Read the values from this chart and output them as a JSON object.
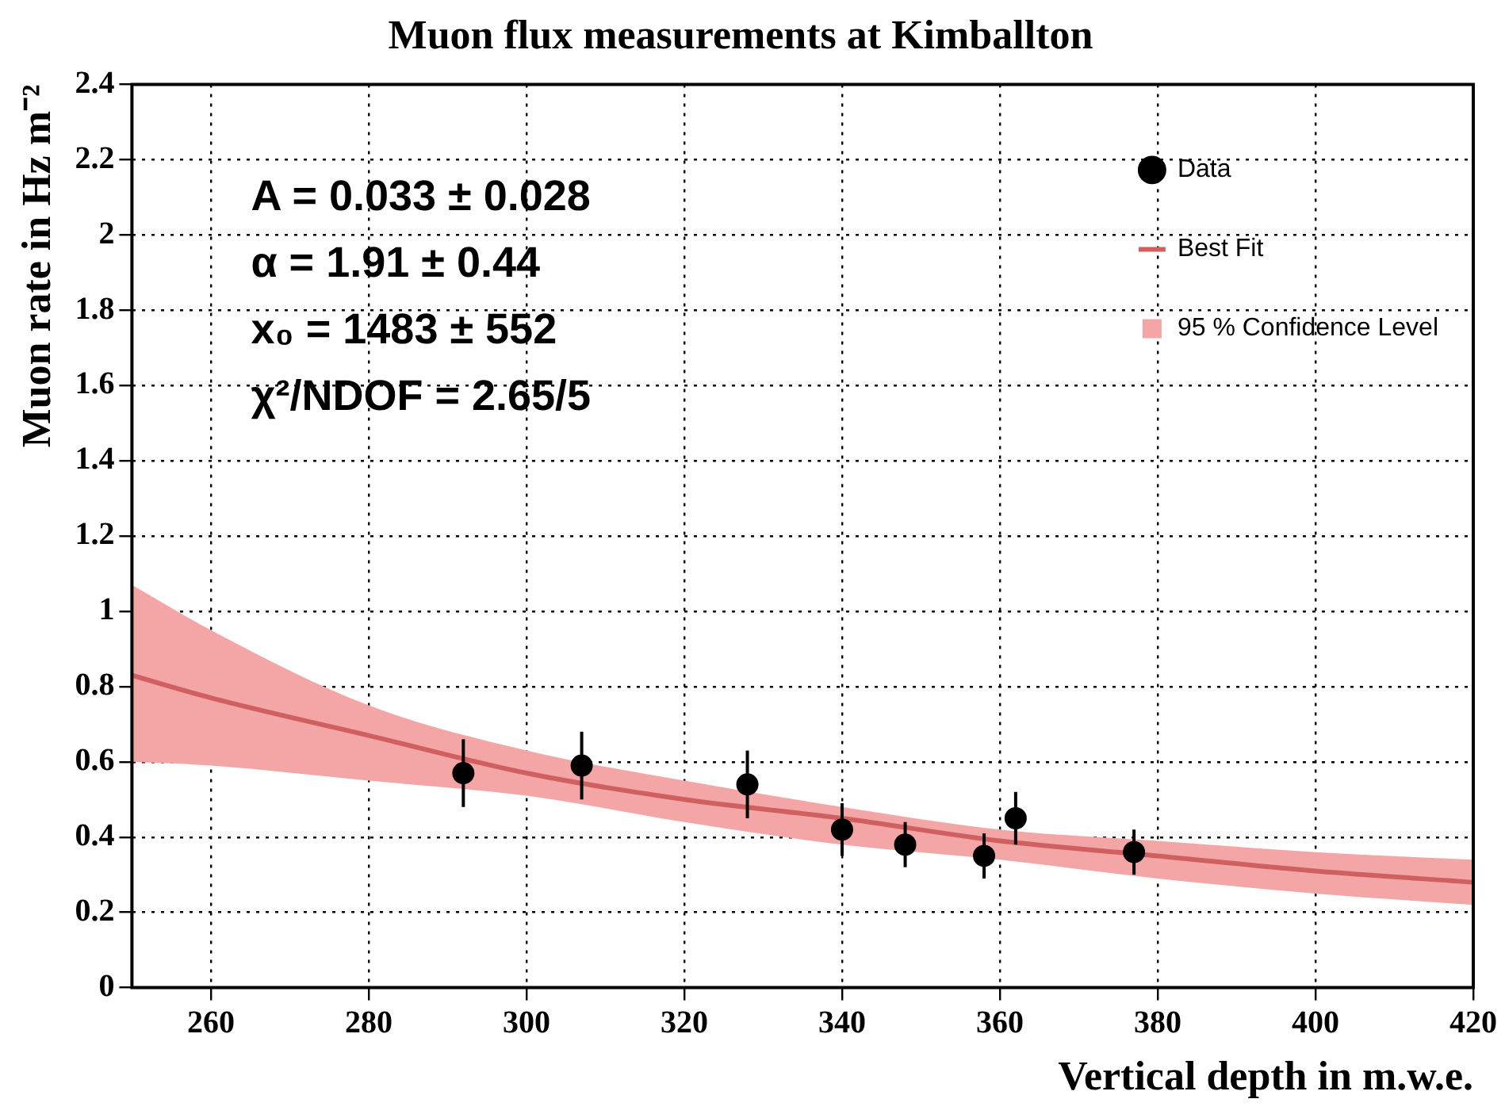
{
  "chart_data": {
    "type": "scatter",
    "title": "Muon flux measurements at Kimballton",
    "xlabel": "Vertical depth in m.w.e.",
    "ylabel": "Muon rate in Hz m⁻²",
    "annotations": [
      "A = 0.033 ± 0.028",
      "α = 1.91 ± 0.44",
      "x₀ = 1483 ± 552",
      "χ²/NDOF = 2.65/5"
    ],
    "series": [
      {
        "name": "Data",
        "type": "scatter",
        "marker": "circle",
        "color": "#000000",
        "x": [
          292,
          307,
          328,
          340,
          348,
          358,
          362,
          377
        ],
        "values": [
          0.57,
          0.59,
          0.54,
          0.42,
          0.38,
          0.35,
          0.45,
          0.36
        ],
        "errors": [
          0.09,
          0.09,
          0.09,
          0.07,
          0.06,
          0.06,
          0.07,
          0.06
        ]
      },
      {
        "name": "Best Fit",
        "type": "line",
        "color": "#d06060",
        "x": [
          250,
          260,
          280,
          300,
          320,
          340,
          360,
          380,
          400,
          420
        ],
        "values": [
          0.83,
          0.77,
          0.67,
          0.57,
          0.5,
          0.45,
          0.39,
          0.35,
          0.31,
          0.28
        ],
        "upper": [
          1.07,
          0.95,
          0.75,
          0.63,
          0.55,
          0.48,
          0.42,
          0.39,
          0.36,
          0.34
        ],
        "lower": [
          0.6,
          0.59,
          0.55,
          0.51,
          0.44,
          0.38,
          0.34,
          0.29,
          0.25,
          0.22
        ]
      },
      {
        "name": "95 % Confidence Level",
        "type": "area",
        "color": "#f4a6a6"
      }
    ],
    "xlim": [
      250,
      420
    ],
    "xticks": [
      260,
      280,
      300,
      320,
      340,
      360,
      380,
      400,
      420
    ],
    "ylim": [
      0,
      2.4
    ],
    "yticks": [
      0,
      0.2,
      0.4,
      0.6,
      0.8,
      1,
      1.2,
      1.4,
      1.6,
      1.8,
      2,
      2.2,
      2.4
    ],
    "grid": true,
    "legend": "top right"
  }
}
